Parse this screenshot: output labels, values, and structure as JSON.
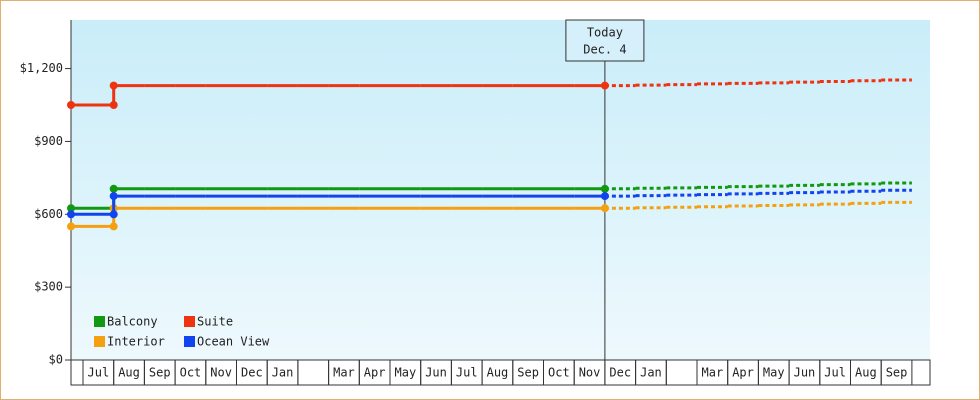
{
  "chart_data": {
    "type": "step-line",
    "categories": [
      "Jul",
      "Aug",
      "Sep",
      "Oct",
      "Nov",
      "Dec",
      "Jan",
      null,
      "Mar",
      "Apr",
      "May",
      "Jun",
      "Jul",
      "Aug",
      "Sep",
      "Oct",
      "Nov",
      "Dec",
      "Jan",
      null,
      "Mar",
      "Apr",
      "May",
      "Jun",
      "Jul",
      "Aug",
      "Sep"
    ],
    "ylim": [
      0,
      1400
    ],
    "yticks": [
      {
        "value": 0,
        "label": "$0"
      },
      {
        "value": 300,
        "label": "$300"
      },
      {
        "value": 600,
        "label": "$600"
      },
      {
        "value": 900,
        "label": "$900"
      },
      {
        "value": 1200,
        "label": "$1,200"
      }
    ],
    "today": {
      "index": 17,
      "label": "Today",
      "date": "Dec. 4"
    },
    "series": [
      {
        "name": "Balcony",
        "color": "#119911",
        "values": [
          625,
          705,
          705,
          705,
          705,
          705,
          705,
          705,
          705,
          705,
          705,
          705,
          705,
          705,
          705,
          705,
          705,
          705,
          707,
          709,
          711,
          714,
          716,
          719,
          722,
          725,
          729
        ]
      },
      {
        "name": "Suite",
        "color": "#ee3311",
        "values": [
          1050,
          1130,
          1130,
          1130,
          1130,
          1130,
          1130,
          1130,
          1130,
          1130,
          1130,
          1130,
          1130,
          1130,
          1130,
          1130,
          1130,
          1130,
          1132,
          1134,
          1137,
          1139,
          1141,
          1144,
          1147,
          1150,
          1153
        ]
      },
      {
        "name": "Interior",
        "color": "#f5a011",
        "values": [
          550,
          625,
          625,
          625,
          625,
          625,
          625,
          625,
          625,
          625,
          625,
          625,
          625,
          625,
          625,
          625,
          625,
          625,
          627,
          629,
          631,
          634,
          636,
          639,
          642,
          645,
          649
        ]
      },
      {
        "name": "Ocean View",
        "color": "#1144ee",
        "values": [
          600,
          675,
          675,
          675,
          675,
          675,
          675,
          675,
          675,
          675,
          675,
          675,
          675,
          675,
          675,
          675,
          675,
          675,
          677,
          679,
          681,
          684,
          686,
          689,
          692,
          695,
          699
        ]
      }
    ]
  }
}
